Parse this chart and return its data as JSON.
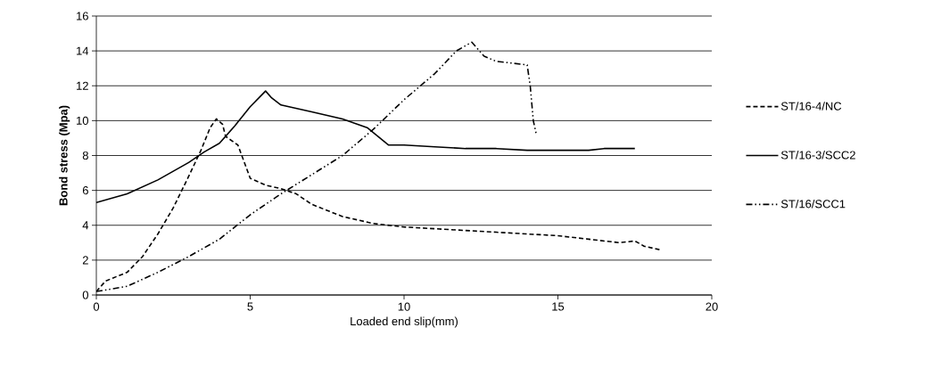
{
  "chart_data": {
    "type": "line",
    "xlabel": "Loaded end slip(mm)",
    "ylabel": "Bond stress (Mpa)",
    "xlim": [
      0,
      20
    ],
    "xticks": [
      0,
      5,
      10,
      15,
      20
    ],
    "ylim": [
      0,
      16
    ],
    "yticks": [
      0,
      2,
      4,
      6,
      8,
      10,
      12,
      14,
      16
    ],
    "grid": "y",
    "legend": "right",
    "marker": "none",
    "series": [
      {
        "name": "ST/16-4/NC",
        "color": "#000000",
        "line_style": "dashed",
        "x": [
          0,
          0.3,
          1,
          1.5,
          2,
          2.5,
          3,
          3.4,
          3.7,
          3.9,
          4.1,
          4.2,
          4.6,
          5,
          5.5,
          6,
          6.5,
          7,
          8,
          9,
          10,
          11,
          12,
          13,
          14,
          15,
          16,
          17,
          17.5,
          17.8,
          18.3
        ],
        "values": [
          0.2,
          0.8,
          1.3,
          2.2,
          3.5,
          5,
          6.8,
          8.3,
          9.6,
          10.1,
          9.8,
          9.1,
          8.6,
          6.7,
          6.3,
          6.1,
          5.8,
          5.2,
          4.5,
          4.1,
          3.9,
          3.8,
          3.7,
          3.6,
          3.5,
          3.4,
          3.2,
          3.0,
          3.1,
          2.8,
          2.6
        ]
      },
      {
        "name": "ST/16-3/SCC2",
        "color": "#000000",
        "line_style": "solid",
        "x": [
          0,
          1,
          2,
          3,
          3.5,
          4,
          4.5,
          5,
          5.5,
          5.7,
          6,
          7,
          8,
          8.8,
          9.5,
          10,
          11,
          12,
          13,
          14,
          15,
          16,
          16.5,
          17.5
        ],
        "values": [
          5.3,
          5.8,
          6.6,
          7.6,
          8.2,
          8.7,
          9.7,
          10.8,
          11.7,
          11.3,
          10.9,
          10.5,
          10.1,
          9.6,
          8.6,
          8.6,
          8.5,
          8.4,
          8.4,
          8.3,
          8.3,
          8.3,
          8.4,
          8.4
        ]
      },
      {
        "name": "ST/16/SCC1",
        "color": "#000000",
        "line_style": "dashdotdotted",
        "x": [
          0,
          1,
          2,
          3,
          4,
          5,
          6,
          7,
          8,
          9,
          10,
          11,
          11.7,
          12.2,
          12.6,
          13,
          14,
          14.1,
          14.2,
          14.3
        ],
        "values": [
          0.2,
          0.5,
          1.3,
          2.2,
          3.2,
          4.6,
          5.8,
          6.9,
          8,
          9.5,
          11.2,
          12.7,
          14,
          14.5,
          13.7,
          13.4,
          13.2,
          12,
          10,
          9.2
        ]
      }
    ]
  }
}
